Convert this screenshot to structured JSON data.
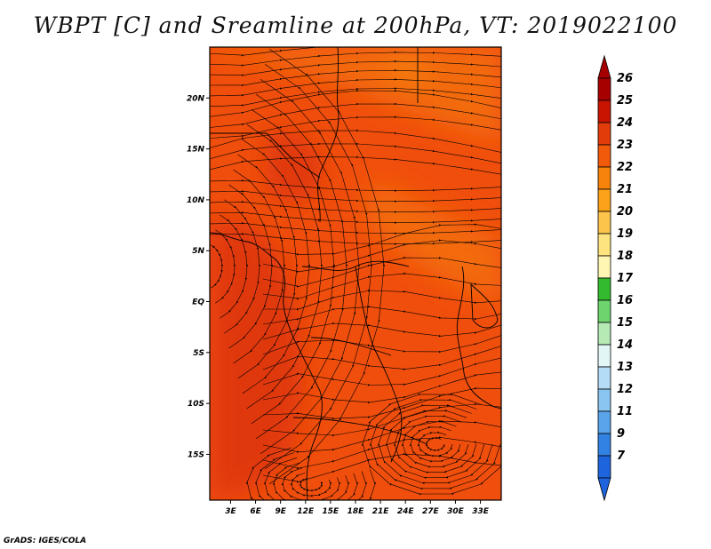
{
  "title": "WBPT [C] and Sreamline at 200hPa, VT: 2019022100",
  "footer": "GrADS: IGES/COLA",
  "map": {
    "lon_ticks": [
      "3E",
      "6E",
      "9E",
      "12E",
      "15E",
      "18E",
      "21E",
      "24E",
      "27E",
      "30E",
      "33E"
    ],
    "lat_ticks": [
      "20N",
      "15N",
      "10N",
      "5N",
      "EQ",
      "5S",
      "10S",
      "15S"
    ],
    "lon_range": [
      0.5,
      35.5
    ],
    "lat_range": [
      -19.5,
      25
    ],
    "fill_colors": {
      "background": "#f04e0c",
      "warm_band": "#f36a10",
      "cool_core": "#e03808",
      "northeast": "#f88814"
    }
  },
  "colorbar": {
    "labels": [
      "26",
      "25",
      "24",
      "23",
      "22",
      "21",
      "20",
      "19",
      "18",
      "17",
      "16",
      "15",
      "14",
      "13",
      "12",
      "11",
      "9",
      "7"
    ],
    "colors": [
      "#a60000",
      "#c81400",
      "#e23c0a",
      "#f05a0a",
      "#f7820c",
      "#fba21a",
      "#fcc44a",
      "#fde47e",
      "#fff6b4",
      "#34ba2e",
      "#6ed46e",
      "#b6eab4",
      "#e2f6f6",
      "#b4dcf6",
      "#8ac4f0",
      "#5aa4ec",
      "#3282e4",
      "#1e64dc"
    ],
    "top_arrow_color": "#a60000",
    "bottom_arrow_color": "#1e64dc"
  }
}
